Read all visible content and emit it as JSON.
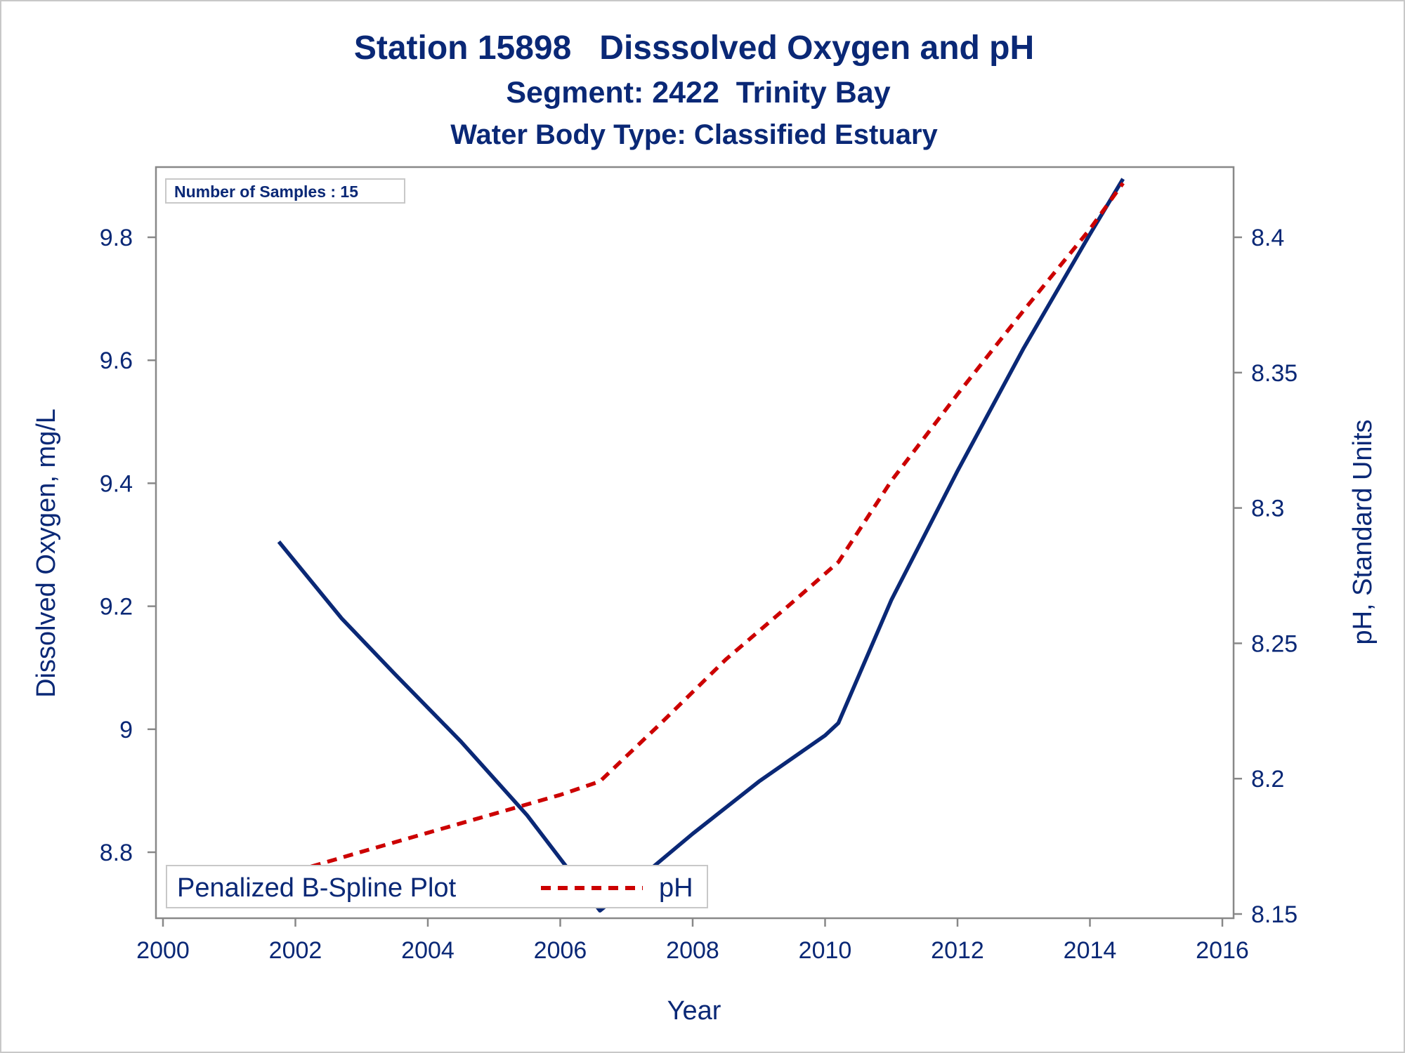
{
  "chart_data": {
    "type": "line",
    "title": "Station 15898   Disssolved Oxygen and pH",
    "subtitle": "Segment: 2422  Trinity Bay",
    "subtitle2": "Water Body Type: Classified Estuary",
    "xlabel": "Year",
    "ylabel": "Dissolved Oxygen, mg/L",
    "y2label": "pH, Standard Units",
    "xlim": [
      2000,
      2016
    ],
    "ylim": [
      8.7,
      9.9
    ],
    "y2lim": [
      8.148,
      8.42
    ],
    "xticks": [
      "2000",
      "2002",
      "2004",
      "2006",
      "2008",
      "2010",
      "2012",
      "2014",
      "2016"
    ],
    "yticks": [
      "8.8",
      "9",
      "9.2",
      "9.4",
      "9.6",
      "9.8"
    ],
    "y2ticks": [
      "8.15",
      "8.2",
      "8.25",
      "8.3",
      "8.35",
      "8.4"
    ],
    "inset_text": "Number of Samples : 15",
    "legend": {
      "title": "Penalized B-Spline Plot",
      "entries": [
        "pH"
      ],
      "position": "bottom-left"
    },
    "series": [
      {
        "axis": "left",
        "color": "#0a2876",
        "style": "solid",
        "points": [
          {
            "x": 2001.75,
            "y": 9.305
          },
          {
            "x": 2002.7,
            "y": 9.18
          },
          {
            "x": 2003.5,
            "y": 9.09
          },
          {
            "x": 2004.5,
            "y": 8.98
          },
          {
            "x": 2005.5,
            "y": 8.86
          },
          {
            "x": 2006.6,
            "y": 8.705
          },
          {
            "x": 2007.0,
            "y": 8.74
          },
          {
            "x": 2008.0,
            "y": 8.83
          },
          {
            "x": 2009.0,
            "y": 8.915
          },
          {
            "x": 2010.0,
            "y": 8.99
          },
          {
            "x": 2010.2,
            "y": 9.01
          },
          {
            "x": 2011.0,
            "y": 9.21
          },
          {
            "x": 2012.0,
            "y": 9.42
          },
          {
            "x": 2013.0,
            "y": 9.62
          },
          {
            "x": 2014.0,
            "y": 9.805
          },
          {
            "x": 2014.5,
            "y": 9.895
          }
        ]
      },
      {
        "name": "pH",
        "axis": "right",
        "color": "#cc0000",
        "style": "dashed",
        "points": [
          {
            "x": 2001.75,
            "y": 8.164
          },
          {
            "x": 2003.0,
            "y": 8.173
          },
          {
            "x": 2004.0,
            "y": 8.18
          },
          {
            "x": 2005.0,
            "y": 8.187
          },
          {
            "x": 2006.0,
            "y": 8.194
          },
          {
            "x": 2006.6,
            "y": 8.199
          },
          {
            "x": 2007.5,
            "y": 8.22
          },
          {
            "x": 2008.5,
            "y": 8.244
          },
          {
            "x": 2009.5,
            "y": 8.265
          },
          {
            "x": 2010.2,
            "y": 8.28
          },
          {
            "x": 2011.0,
            "y": 8.31
          },
          {
            "x": 2012.0,
            "y": 8.342
          },
          {
            "x": 2013.0,
            "y": 8.373
          },
          {
            "x": 2014.0,
            "y": 8.403
          },
          {
            "x": 2014.5,
            "y": 8.42
          }
        ]
      }
    ]
  }
}
